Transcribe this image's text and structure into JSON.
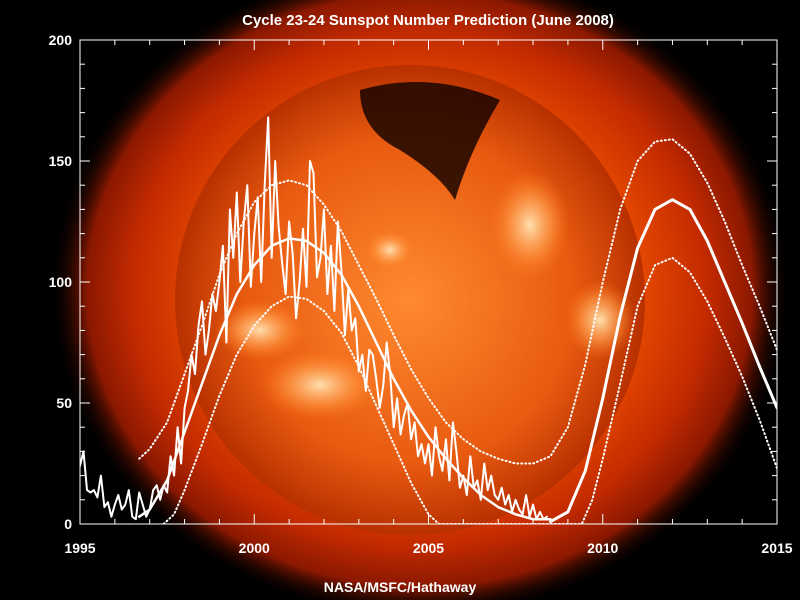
{
  "chart_data": {
    "type": "line",
    "title": "Cycle 23-24 Sunspot Number Prediction (June 2008)",
    "credit": "NASA/MSFC/Hathaway",
    "background_image": "soft x-ray image of the Sun",
    "xlim": [
      1995,
      2015
    ],
    "ylim": [
      0,
      200
    ],
    "xticks": [
      1995,
      2000,
      2005,
      2010,
      2015
    ],
    "yticks": [
      0,
      50,
      100,
      150,
      200
    ],
    "grid": false,
    "colors": {
      "background": "#000000",
      "axes": "#ffffff",
      "lines": "#ffffff",
      "sun_core": "#ff7a1a",
      "sun_corona": "#c22a00"
    },
    "series": [
      {
        "style": "monthly",
        "x": [
          1995.0,
          1995.1,
          1995.2,
          1995.3,
          1995.4,
          1995.5,
          1995.6,
          1995.7,
          1995.8,
          1995.9,
          1996.0,
          1996.1,
          1996.2,
          1996.3,
          1996.4,
          1996.5,
          1996.6,
          1996.7,
          1996.8,
          1996.9,
          1997.0,
          1997.1,
          1997.2,
          1997.3,
          1997.4,
          1997.5,
          1997.6,
          1997.7,
          1997.8,
          1997.9,
          1998.0,
          1998.1,
          1998.2,
          1998.3,
          1998.4,
          1998.5,
          1998.6,
          1998.7,
          1998.8,
          1998.9,
          1999.0,
          1999.1,
          1999.2,
          1999.3,
          1999.4,
          1999.5,
          1999.6,
          1999.7,
          1999.8,
          1999.9,
          2000.0,
          2000.1,
          2000.2,
          2000.3,
          2000.4,
          2000.5,
          2000.6,
          2000.7,
          2000.8,
          2000.9,
          2001.0,
          2001.1,
          2001.2,
          2001.3,
          2001.4,
          2001.5,
          2001.6,
          2001.7,
          2001.8,
          2001.9,
          2002.0,
          2002.1,
          2002.2,
          2002.3,
          2002.4,
          2002.5,
          2002.6,
          2002.7,
          2002.8,
          2002.9,
          2003.0,
          2003.1,
          2003.2,
          2003.3,
          2003.4,
          2003.5,
          2003.6,
          2003.7,
          2003.8,
          2003.9,
          2004.0,
          2004.1,
          2004.2,
          2004.3,
          2004.4,
          2004.5,
          2004.6,
          2004.7,
          2004.8,
          2004.9,
          2005.0,
          2005.1,
          2005.2,
          2005.3,
          2005.4,
          2005.5,
          2005.6,
          2005.7,
          2005.8,
          2005.9,
          2006.0,
          2006.1,
          2006.2,
          2006.3,
          2006.4,
          2006.5,
          2006.6,
          2006.7,
          2006.8,
          2006.9,
          2007.0,
          2007.1,
          2007.2,
          2007.3,
          2007.4,
          2007.5,
          2007.6,
          2007.7,
          2007.8,
          2007.9,
          2008.0,
          2008.1,
          2008.2,
          2008.3,
          2008.4
        ],
        "y": [
          24,
          30,
          14,
          13,
          14,
          11,
          20,
          7,
          9,
          3,
          8,
          12,
          6,
          8,
          14,
          3,
          2,
          13,
          8,
          3,
          6,
          14,
          16,
          10,
          16,
          13,
          28,
          20,
          40,
          25,
          48,
          55,
          70,
          62,
          82,
          92,
          70,
          80,
          95,
          88,
          100,
          115,
          75,
          130,
          110,
          137,
          100,
          125,
          140,
          98,
          120,
          135,
          100,
          140,
          168,
          110,
          150,
          123,
          108,
          95,
          125,
          112,
          85,
          100,
          122,
          98,
          150,
          145,
          102,
          110,
          130,
          95,
          115,
          88,
          125,
          105,
          78,
          97,
          80,
          85,
          63,
          70,
          55,
          72,
          70,
          60,
          48,
          57,
          75,
          62,
          40,
          52,
          37,
          45,
          50,
          35,
          42,
          28,
          33,
          25,
          33,
          20,
          40,
          28,
          22,
          35,
          18,
          42,
          30,
          15,
          20,
          12,
          28,
          15,
          18,
          10,
          25,
          14,
          20,
          12,
          10,
          15,
          8,
          12,
          5,
          10,
          6,
          4,
          12,
          3,
          8,
          2,
          5,
          2,
          3
        ]
      },
      {
        "style": "smoothed",
        "x": [
          1996.7,
          1997.0,
          1997.5,
          1998.0,
          1998.5,
          1999.0,
          1999.5,
          2000.0,
          2000.5,
          2001.0,
          2001.5,
          2002.0,
          2002.5,
          2003.0,
          2003.5,
          2004.0,
          2004.5,
          2005.0,
          2005.5,
          2006.0,
          2006.5,
          2007.0,
          2007.5,
          2008.0,
          2008.5
        ],
        "y": [
          3,
          6,
          18,
          38,
          58,
          78,
          95,
          107,
          115,
          118,
          117,
          112,
          103,
          90,
          75,
          60,
          47,
          36,
          27,
          19,
          12,
          7,
          4,
          2,
          2
        ]
      },
      {
        "style": "prediction",
        "x": [
          2008.5,
          2009.0,
          2009.5,
          2010.0,
          2010.5,
          2011.0,
          2011.5,
          2012.0,
          2012.5,
          2013.0,
          2013.5,
          2014.0,
          2014.5,
          2015.0
        ],
        "y": [
          1,
          5,
          22,
          52,
          86,
          114,
          130,
          134,
          130,
          117,
          100,
          83,
          65,
          48
        ]
      },
      {
        "style": "upper-bound",
        "x": [
          1996.7,
          1997.0,
          1997.5,
          1998.0,
          1998.5,
          1999.0,
          1999.5,
          2000.0,
          2000.5,
          2001.0,
          2001.5,
          2002.0,
          2002.5,
          2003.0,
          2003.5,
          2004.0,
          2004.5,
          2005.0,
          2005.5,
          2006.0,
          2006.5,
          2007.0,
          2007.5,
          2008.0,
          2008.5,
          2009.0,
          2009.5,
          2010.0,
          2010.5,
          2011.0,
          2011.5,
          2012.0,
          2012.5,
          2013.0,
          2013.5,
          2014.0,
          2014.5,
          2015.0
        ],
        "y": [
          27,
          31,
          42,
          62,
          82,
          103,
          120,
          133,
          140,
          142,
          140,
          132,
          121,
          107,
          93,
          78,
          64,
          52,
          42,
          35,
          30,
          27,
          25,
          25,
          28,
          40,
          66,
          100,
          130,
          150,
          158,
          159,
          153,
          141,
          125,
          107,
          90,
          72
        ]
      },
      {
        "style": "lower-bound",
        "x": [
          1997.4,
          1997.7,
          1998.0,
          1998.5,
          1999.0,
          1999.5,
          2000.0,
          2000.5,
          2001.0,
          2001.5,
          2002.0,
          2002.5,
          2003.0,
          2003.5,
          2004.0,
          2004.5,
          2005.0,
          2005.3,
          2009.4,
          2009.7,
          2010.0,
          2010.5,
          2011.0,
          2011.5,
          2012.0,
          2012.5,
          2013.0,
          2013.5,
          2014.0,
          2014.5,
          2015.0
        ],
        "y": [
          0,
          4,
          14,
          33,
          53,
          70,
          82,
          90,
          94,
          93,
          88,
          79,
          65,
          49,
          33,
          17,
          4,
          0,
          0,
          10,
          27,
          58,
          90,
          107,
          110,
          104,
          92,
          77,
          61,
          43,
          23
        ]
      }
    ]
  }
}
